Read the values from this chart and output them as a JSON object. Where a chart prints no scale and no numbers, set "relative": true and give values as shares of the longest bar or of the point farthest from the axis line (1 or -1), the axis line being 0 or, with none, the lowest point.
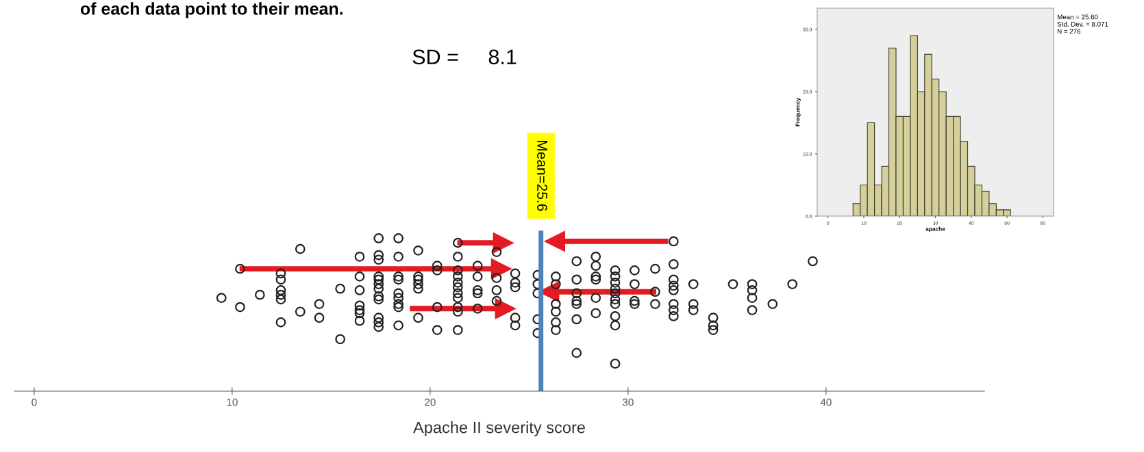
{
  "chart_data": [
    {
      "type": "scatter",
      "xlabel": "Apache II severity score",
      "relative": true,
      "marker": "circle",
      "grid": false,
      "annotations": [
        "of each data point to their mean.",
        "SD =     8.1"
      ],
      "xlim": [
        -1,
        48
      ],
      "xticks": [
        0,
        10,
        20,
        30,
        40
      ],
      "ref_lines": [
        {
          "axis": "x",
          "value": 25.6,
          "label": "Mean=25.6",
          "color": "#4f81bd"
        }
      ],
      "series": [
        {
          "color": "#222222",
          "x": [
            9.46,
            10.4,
            10.4,
            11.4,
            12.46,
            12.46,
            12.46,
            12.46,
            12.46,
            12.46,
            13.44,
            13.44,
            14.4,
            14.4,
            15.46,
            15.46,
            16.44,
            16.44,
            16.44,
            16.44,
            16.44,
            16.44,
            16.44,
            17.4,
            17.4,
            17.4,
            17.4,
            17.4,
            17.4,
            17.4,
            17.4,
            17.4,
            17.4,
            17.4,
            17.4,
            18.4,
            18.4,
            18.4,
            18.4,
            18.4,
            18.4,
            18.4,
            18.4,
            18.4,
            19.4,
            19.4,
            19.4,
            19.4,
            19.4,
            19.4,
            20.36,
            20.36,
            20.36,
            20.36,
            21.4,
            21.4,
            21.4,
            21.4,
            21.4,
            21.4,
            21.4,
            21.4,
            21.4,
            21.4,
            21.4,
            22.4,
            22.4,
            22.4,
            22.4,
            22.4,
            23.36,
            23.36,
            23.36,
            23.36,
            24.3,
            24.3,
            24.3,
            24.3,
            24.3,
            25.43,
            25.43,
            25.43,
            25.43,
            25.43,
            26.35,
            26.35,
            26.35,
            26.35,
            26.35,
            26.35,
            27.4,
            27.4,
            27.4,
            27.4,
            27.4,
            27.4,
            27.4,
            28.37,
            28.37,
            28.37,
            28.37,
            28.37,
            28.37,
            29.35,
            29.35,
            29.35,
            29.35,
            29.35,
            29.35,
            29.35,
            29.35,
            29.35,
            29.35,
            30.33,
            30.33,
            30.33,
            30.33,
            31.37,
            31.37,
            31.37,
            32.3,
            32.3,
            32.3,
            32.3,
            32.3,
            32.3,
            32.3,
            32.3,
            33.3,
            33.3,
            33.3,
            34.3,
            34.3,
            34.3,
            35.3,
            36.27,
            36.27,
            36.27,
            36.27,
            37.3,
            38.3,
            39.33
          ],
          "values": [
            0.61,
            0.8,
            0.55,
            0.63,
            0.77,
            0.73,
            0.66,
            0.63,
            0.6,
            0.45,
            0.93,
            0.52,
            0.57,
            0.48,
            0.67,
            0.34,
            0.88,
            0.75,
            0.66,
            0.56,
            0.53,
            0.51,
            0.46,
            1.0,
            0.89,
            0.86,
            0.75,
            0.73,
            0.7,
            0.67,
            0.62,
            0.6,
            0.48,
            0.45,
            0.42,
            1.0,
            0.88,
            0.75,
            0.73,
            0.64,
            0.61,
            0.57,
            0.55,
            0.43,
            0.92,
            0.75,
            0.73,
            0.7,
            0.67,
            0.48,
            0.82,
            0.79,
            0.55,
            0.4,
            0.97,
            0.88,
            0.79,
            0.75,
            0.71,
            0.68,
            0.64,
            0.61,
            0.55,
            0.52,
            0.4,
            0.82,
            0.75,
            0.66,
            0.64,
            0.54,
            0.91,
            0.74,
            0.66,
            0.59,
            0.77,
            0.71,
            0.68,
            0.48,
            0.43,
            0.76,
            0.7,
            0.64,
            0.47,
            0.38,
            0.75,
            0.7,
            0.57,
            0.52,
            0.45,
            0.4,
            0.85,
            0.73,
            0.64,
            0.59,
            0.57,
            0.47,
            0.25,
            0.88,
            0.82,
            0.75,
            0.73,
            0.61,
            0.51,
            0.79,
            0.75,
            0.71,
            0.67,
            0.64,
            0.6,
            0.57,
            0.49,
            0.43,
            0.18,
            0.79,
            0.7,
            0.59,
            0.57,
            0.8,
            0.65,
            0.57,
            0.98,
            0.83,
            0.73,
            0.69,
            0.66,
            0.57,
            0.53,
            0.49,
            0.7,
            0.57,
            0.53,
            0.48,
            0.43,
            0.4,
            0.7,
            0.7,
            0.66,
            0.61,
            0.53,
            0.57,
            0.7,
            0.85
          ]
        }
      ]
    },
    {
      "type": "histogram",
      "xlabel": "apache",
      "ylabel": "Frequency",
      "color": "#d4cf9b",
      "grid": false,
      "annotations": [
        "Mean = 25.60\nStd. Dev. = 8.071\nN = 276"
      ],
      "bins": [
        7,
        9,
        11,
        13,
        15,
        17,
        19,
        21,
        23,
        25,
        27,
        29,
        31,
        33,
        35,
        37,
        39,
        41,
        43,
        45,
        47,
        49,
        51
      ],
      "values": [
        2,
        5,
        15,
        5,
        8,
        27,
        16,
        16,
        29,
        20,
        26,
        22,
        20,
        16,
        16,
        12,
        8,
        5,
        4,
        2,
        1,
        1
      ],
      "xlim": [
        -3,
        63
      ],
      "xticks": [
        0,
        10,
        20,
        30,
        40,
        50,
        60
      ],
      "ylim": [
        0,
        33.4
      ],
      "yticks": [
        {
          "value": 0,
          "label": "0.0"
        },
        {
          "value": 10,
          "label": "10.0"
        },
        {
          "value": 20,
          "label": "20.0"
        },
        {
          "value": 30,
          "label": "30.0"
        }
      ]
    }
  ]
}
